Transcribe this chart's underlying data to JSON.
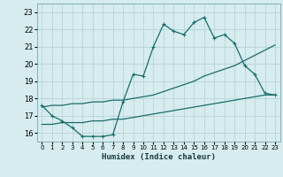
{
  "title": "",
  "xlabel": "Humidex (Indice chaleur)",
  "xlim": [
    -0.5,
    23.5
  ],
  "ylim": [
    15.5,
    23.5
  ],
  "xticks": [
    0,
    1,
    2,
    3,
    4,
    5,
    6,
    7,
    8,
    9,
    10,
    11,
    12,
    13,
    14,
    15,
    16,
    17,
    18,
    19,
    20,
    21,
    22,
    23
  ],
  "yticks": [
    16,
    17,
    18,
    19,
    20,
    21,
    22,
    23
  ],
  "background_color": "#d6ecee",
  "grid_color": "#b8d4d6",
  "line_color": "#1a6b6b",
  "line1_x": [
    0,
    1,
    2,
    3,
    4,
    5,
    6,
    7,
    8,
    9,
    10,
    11,
    12,
    13,
    14,
    15,
    16,
    17,
    18,
    19,
    20,
    21,
    22,
    23
  ],
  "line1_y": [
    17.6,
    17.0,
    16.7,
    16.3,
    15.8,
    15.8,
    15.8,
    15.9,
    17.8,
    19.4,
    19.3,
    21.0,
    22.3,
    21.9,
    21.7,
    22.4,
    22.7,
    21.5,
    21.7,
    21.2,
    19.9,
    19.4,
    18.3,
    18.2
  ],
  "line2_x": [
    0,
    1,
    2,
    3,
    4,
    5,
    6,
    7,
    8,
    9,
    10,
    11,
    12,
    13,
    14,
    15,
    16,
    17,
    18,
    19,
    20,
    21,
    22,
    23
  ],
  "line2_y": [
    17.5,
    17.6,
    17.6,
    17.7,
    17.7,
    17.8,
    17.8,
    17.9,
    17.9,
    18.0,
    18.1,
    18.2,
    18.4,
    18.6,
    18.8,
    19.0,
    19.3,
    19.5,
    19.7,
    19.9,
    20.2,
    20.5,
    20.8,
    21.1
  ],
  "line3_x": [
    0,
    1,
    2,
    3,
    4,
    5,
    6,
    7,
    8,
    9,
    10,
    11,
    12,
    13,
    14,
    15,
    16,
    17,
    18,
    19,
    20,
    21,
    22,
    23
  ],
  "line3_y": [
    16.5,
    16.5,
    16.6,
    16.6,
    16.6,
    16.7,
    16.7,
    16.8,
    16.8,
    16.9,
    17.0,
    17.1,
    17.2,
    17.3,
    17.4,
    17.5,
    17.6,
    17.7,
    17.8,
    17.9,
    18.0,
    18.1,
    18.2,
    18.2
  ]
}
